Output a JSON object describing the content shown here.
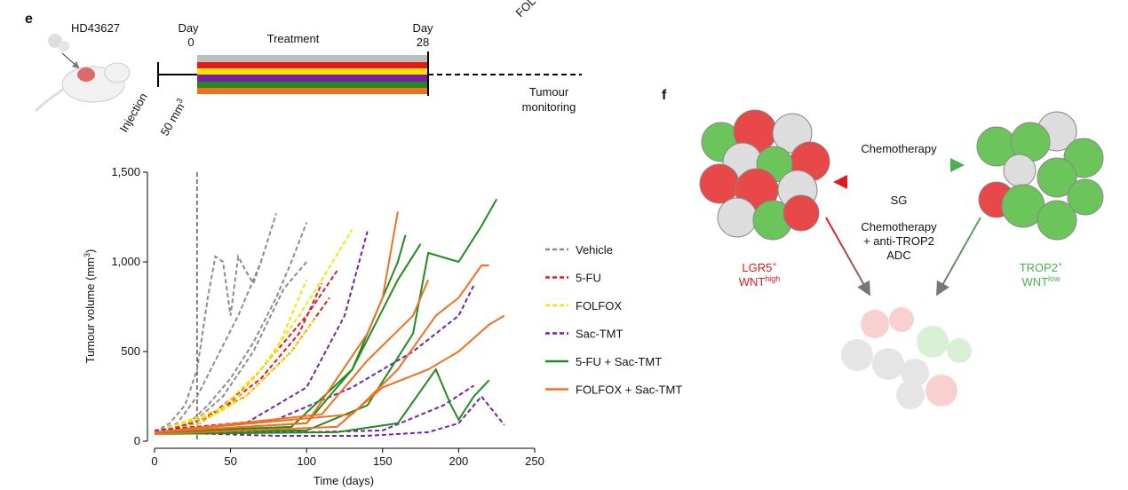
{
  "panel_e": {
    "label": "e",
    "model": "HD43627",
    "day_start_label": "Day",
    "day_start": "0",
    "treatment": "Treatment",
    "day_end_label": "Day",
    "day_end": "28",
    "injection": "Injection",
    "volume_start": "50 mm",
    "volume_start_sup": "3",
    "monitoring_1": "Tumour",
    "monitoring_2": "monitoring",
    "clipped": "FOL"
  },
  "chart_data": {
    "type": "line",
    "x_label": "Time (days)",
    "y_label": "Tumour volume (mm",
    "y_label_sup": "3",
    "y_label_end": ")",
    "xlim": [
      0,
      250
    ],
    "xticks": [
      0,
      50,
      100,
      150,
      200,
      250
    ],
    "ylim": [
      0,
      1500
    ],
    "yticks": [
      0,
      500,
      {
        "value": 1000,
        "label": "1,000"
      },
      {
        "value": 1500,
        "label": "1,500"
      }
    ],
    "treatment_end_day": 28,
    "series": [
      {
        "name": "Vehicle",
        "color": "#8c8c8c",
        "dashed": true,
        "curves": [
          {
            "x": [
              0,
              10,
              20,
              28,
              35,
              40,
              45,
              50,
              55,
              60,
              65,
              70
            ],
            "values": [
              50,
              100,
              200,
              400,
              800,
              1030,
              1000,
              700,
              1030,
              950,
              880,
              1000
            ]
          },
          {
            "x": [
              0,
              15,
              28,
              40,
              55,
              70,
              80
            ],
            "values": [
              50,
              100,
              250,
              450,
              700,
              1000,
              1270
            ]
          },
          {
            "x": [
              0,
              20,
              35,
              50,
              65,
              80,
              90,
              100
            ],
            "values": [
              40,
              80,
              200,
              350,
              550,
              800,
              1000,
              1220
            ]
          },
          {
            "x": [
              0,
              25,
              45,
              65,
              85,
              100
            ],
            "values": [
              50,
              100,
              250,
              500,
              850,
              1000
            ]
          }
        ]
      },
      {
        "name": "5-FU",
        "color": "#e31a1c",
        "dashed": true,
        "curves": [
          {
            "x": [
              0,
              30,
              60,
              80,
              100,
              120
            ],
            "values": [
              50,
              100,
              300,
              500,
              700,
              950
            ]
          },
          {
            "x": [
              0,
              40,
              70,
              95,
              110
            ],
            "values": [
              50,
              150,
              350,
              600,
              880
            ]
          },
          {
            "x": [
              0,
              30,
              60,
              90,
              115
            ],
            "values": [
              40,
              120,
              250,
              500,
              800
            ]
          }
        ]
      },
      {
        "name": "FOLFOX",
        "color": "#f5e400",
        "dashed": true,
        "curves": [
          {
            "x": [
              0,
              40,
              70,
              95,
              110,
              130
            ],
            "values": [
              50,
              150,
              400,
              700,
              900,
              1180
            ]
          },
          {
            "x": [
              0,
              30,
              60,
              90,
              105
            ],
            "values": [
              40,
              100,
              250,
              500,
              680
            ]
          },
          {
            "x": [
              0,
              50,
              80,
              100
            ],
            "values": [
              50,
              200,
              500,
              900
            ]
          }
        ]
      },
      {
        "name": "Sac-TMT",
        "color": "#7b1fa2",
        "dashed": true,
        "curves": [
          {
            "x": [
              0,
              60,
              100,
              125,
              140
            ],
            "values": [
              50,
              100,
              300,
              700,
              1170
            ]
          },
          {
            "x": [
              0,
              80,
              130,
              170,
              200,
              210
            ],
            "values": [
              60,
              120,
              300,
              500,
              700,
              870
            ]
          },
          {
            "x": [
              0,
              80,
              140,
              180,
              200,
              215,
              230
            ],
            "values": [
              50,
              30,
              30,
              50,
              100,
              250,
              90
            ]
          },
          {
            "x": [
              0,
              100,
              150,
              190,
              210
            ],
            "values": [
              50,
              50,
              60,
              200,
              310
            ]
          }
        ]
      },
      {
        "name": "5-FU + Sac-TMT",
        "color": "#1e8c1e",
        "dashed": false,
        "curves": [
          {
            "x": [
              0,
              100,
              130,
              150,
              160,
              165
            ],
            "values": [
              50,
              100,
              400,
              800,
              1000,
              1150
            ]
          },
          {
            "x": [
              0,
              100,
              140,
              170,
              180,
              200,
              215,
              225
            ],
            "values": [
              50,
              60,
              200,
              600,
              1050,
              1000,
              1200,
              1350
            ]
          },
          {
            "x": [
              0,
              120,
              160,
              185,
              195,
              200,
              210,
              220
            ],
            "values": [
              40,
              50,
              100,
              400,
              200,
              120,
              250,
              340
            ]
          },
          {
            "x": [
              0,
              90,
              130,
              160,
              175
            ],
            "values": [
              50,
              80,
              400,
              900,
              1100
            ]
          }
        ]
      },
      {
        "name": "FOLFOX + Sac-TMT",
        "color": "#f07020",
        "dashed": false,
        "curves": [
          {
            "x": [
              0,
              100,
              140,
              150,
              160
            ],
            "values": [
              50,
              100,
              600,
              800,
              1280
            ]
          },
          {
            "x": [
              0,
              120,
              150,
              180,
              200,
              220,
              230
            ],
            "values": [
              40,
              80,
              300,
              400,
              500,
              650,
              700
            ]
          },
          {
            "x": [
              0,
              130,
              160,
              185,
              200,
              215,
              220
            ],
            "values": [
              50,
              150,
              400,
              700,
              800,
              980,
              980
            ]
          },
          {
            "x": [
              0,
              110,
              140,
              170,
              180
            ],
            "values": [
              50,
              150,
              450,
              700,
              900
            ]
          }
        ]
      }
    ]
  },
  "panel_f": {
    "label": "f",
    "arrow_top": "Chemotherapy",
    "arrow_bottom": "SG",
    "combo_1": "Chemotherapy",
    "combo_2": "+ anti-TROP2",
    "combo_3": "ADC",
    "left_1": "LGR5",
    "left_1_sup": "+",
    "left_2": "WNT",
    "left_2_sup": "high",
    "right_1": "TROP2",
    "right_1_sup": "+",
    "right_2": "WNT",
    "right_2_sup": "low"
  }
}
